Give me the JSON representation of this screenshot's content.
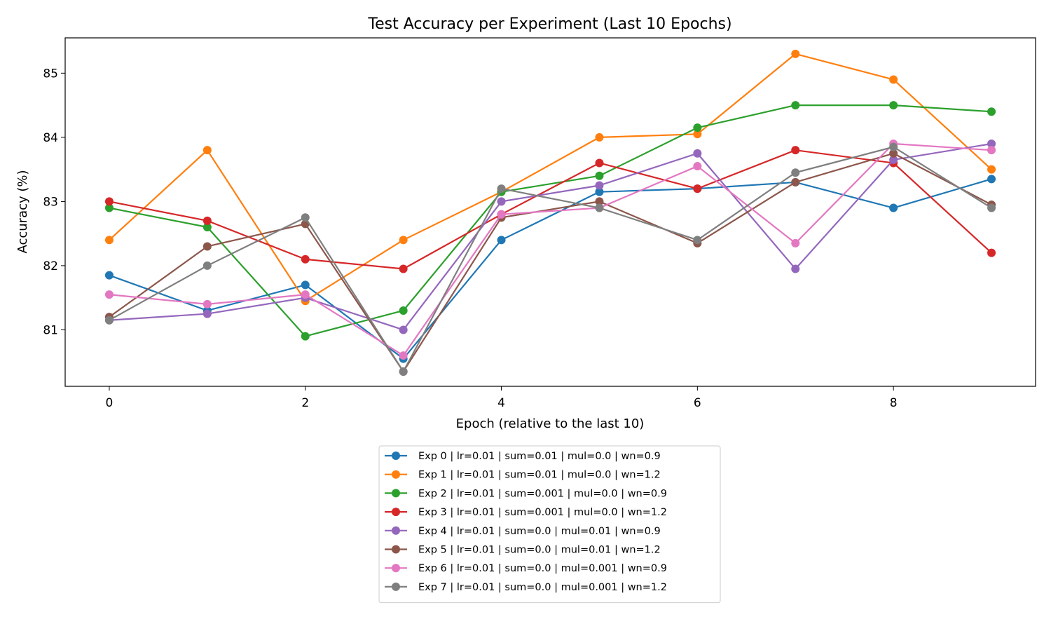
{
  "chart_data": {
    "type": "line",
    "title": "Test Accuracy per Experiment (Last 10 Epochs)",
    "xlabel": "Epoch (relative to the last 10)",
    "ylabel": "Accuracy (%)",
    "x": [
      0,
      1,
      2,
      3,
      4,
      5,
      6,
      7,
      8,
      9
    ],
    "xlim": [
      -0.45,
      9.45
    ],
    "ylim": [
      80.12,
      85.55
    ],
    "xticks": [
      0,
      2,
      4,
      6,
      8
    ],
    "yticks": [
      81,
      82,
      83,
      84,
      85
    ],
    "grid": false,
    "legend_position": "below plot, centered",
    "series": [
      {
        "name": "Exp 0 | lr=0.01 | sum=0.01 | mul=0.0 | wn=0.9",
        "color": "#1f77b4",
        "values": [
          81.85,
          81.3,
          81.7,
          80.55,
          82.4,
          83.15,
          83.2,
          83.3,
          82.9,
          83.35
        ]
      },
      {
        "name": "Exp 1 | lr=0.01 | sum=0.01 | mul=0.0 | wn=1.2",
        "color": "#ff7f0e",
        "values": [
          82.4,
          83.8,
          81.45,
          82.4,
          83.15,
          84.0,
          84.05,
          85.3,
          84.9,
          83.5
        ]
      },
      {
        "name": "Exp 2 | lr=0.01 | sum=0.001 | mul=0.0 | wn=0.9",
        "color": "#2ca02c",
        "values": [
          82.9,
          82.6,
          80.9,
          81.3,
          83.15,
          83.4,
          84.15,
          84.5,
          84.5,
          84.4
        ]
      },
      {
        "name": "Exp 3 | lr=0.01 | sum=0.001 | mul=0.0 | wn=1.2",
        "color": "#d62728",
        "values": [
          83.0,
          82.7,
          82.1,
          81.95,
          82.8,
          83.6,
          83.2,
          83.8,
          83.6,
          82.2
        ]
      },
      {
        "name": "Exp 4 | lr=0.01 | sum=0.0 | mul=0.01 | wn=0.9",
        "color": "#9467bd",
        "values": [
          81.15,
          81.25,
          81.5,
          81.0,
          83.0,
          83.25,
          83.75,
          81.95,
          83.65,
          83.9
        ]
      },
      {
        "name": "Exp 5 | lr=0.01 | sum=0.0 | mul=0.01 | wn=1.2",
        "color": "#8c564b",
        "values": [
          81.2,
          82.3,
          82.65,
          80.35,
          82.75,
          83.0,
          82.35,
          83.3,
          83.75,
          82.95
        ]
      },
      {
        "name": "Exp 6 | lr=0.01 | sum=0.0 | mul=0.001 | wn=0.9",
        "color": "#e377c2",
        "values": [
          81.55,
          81.4,
          81.55,
          80.6,
          82.8,
          82.9,
          83.55,
          82.35,
          83.9,
          83.8
        ]
      },
      {
        "name": "Exp 7 | lr=0.01 | sum=0.0 | mul=0.001 | wn=1.2",
        "color": "#7f7f7f",
        "values": [
          81.15,
          82.0,
          82.75,
          80.35,
          83.2,
          82.9,
          82.4,
          83.45,
          83.85,
          82.9
        ]
      }
    ]
  }
}
